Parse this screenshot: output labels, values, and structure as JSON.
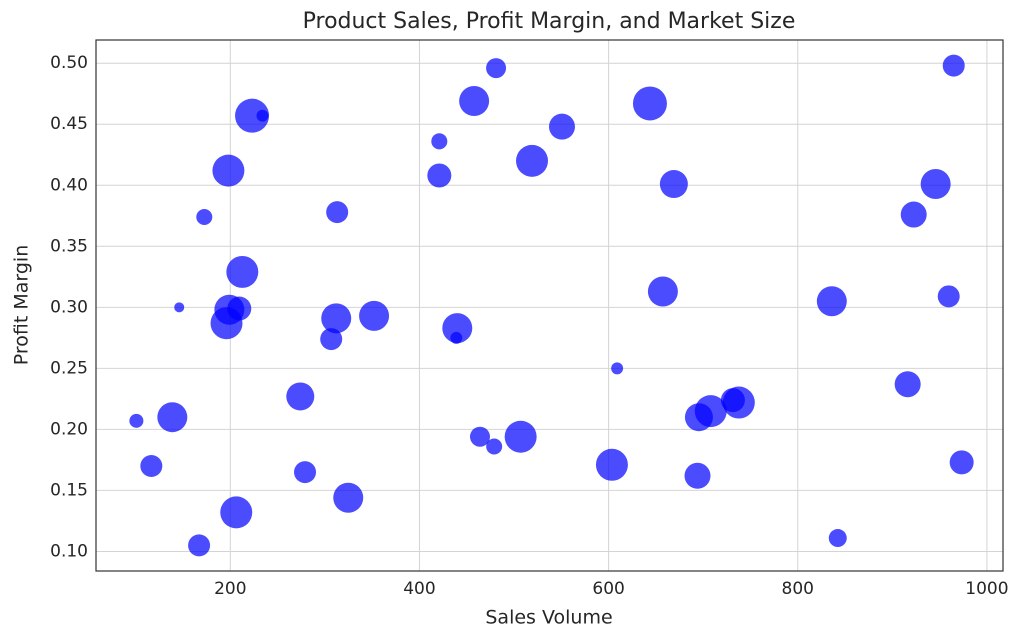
{
  "chart_data": {
    "type": "bubble",
    "title": "Product Sales, Profit Margin, and Market Size",
    "x_label": "Sales Volume",
    "y_label": "Profit Margin",
    "color": "#0000ff",
    "alpha": 0.7,
    "grid": true,
    "xlim": [
      58,
      1017
    ],
    "ylim": [
      0.084,
      0.519
    ],
    "xticks": [
      200,
      400,
      600,
      800,
      1000
    ],
    "yticks": [
      {
        "value": 0.1,
        "label": "0.10"
      },
      0.15,
      {
        "value": 0.2,
        "label": "0.20"
      },
      0.25,
      {
        "value": 0.3,
        "label": "0.30"
      },
      0.35,
      {
        "value": 0.4,
        "label": "0.40"
      },
      0.45,
      {
        "value": 0.5,
        "label": "0.50"
      }
    ],
    "x": [
      100.7,
      116.5,
      138.7,
      146,
      167,
      172.5,
      198,
      196,
      199,
      209.5,
      206.3,
      212.7,
      223,
      234,
      274,
      279,
      306.7,
      312,
      313,
      324.7,
      352,
      421,
      421,
      440,
      439,
      457.8,
      464,
      479,
      481,
      507,
      519,
      550.7,
      603.5,
      609,
      643.7,
      657.4,
      669,
      694,
      695.5,
      708,
      731.4,
      737.7,
      836,
      842.3,
      916.2,
      922.6,
      945.8,
      959.6,
      964.9,
      973.3
    ],
    "values": [
      0.207,
      0.17,
      0.21,
      0.3,
      0.105,
      0.374,
      0.412,
      0.287,
      0.298,
      0.299,
      0.132,
      0.329,
      0.457,
      0.457,
      0.227,
      0.165,
      0.274,
      0.291,
      0.378,
      0.144,
      0.293,
      0.408,
      0.436,
      0.283,
      0.275,
      0.469,
      0.194,
      0.186,
      0.496,
      0.194,
      0.42,
      0.448,
      0.171,
      0.25,
      0.467,
      0.313,
      0.401,
      0.162,
      0.21,
      0.215,
      0.224,
      0.222,
      0.305,
      0.111,
      0.237,
      0.376,
      0.401,
      0.309,
      0.498,
      0.173
    ],
    "sizes": [
      100,
      247,
      459,
      51,
      247,
      131,
      522,
      522,
      459,
      294,
      522,
      522,
      590,
      73,
      400,
      247,
      247,
      459,
      247,
      459,
      459,
      294,
      131,
      459,
      73,
      459,
      204,
      131,
      204,
      522,
      522,
      345,
      522,
      73,
      590,
      459,
      400,
      345,
      400,
      522,
      294,
      522,
      459,
      165,
      345,
      345,
      459,
      247,
      247,
      294
    ]
  }
}
